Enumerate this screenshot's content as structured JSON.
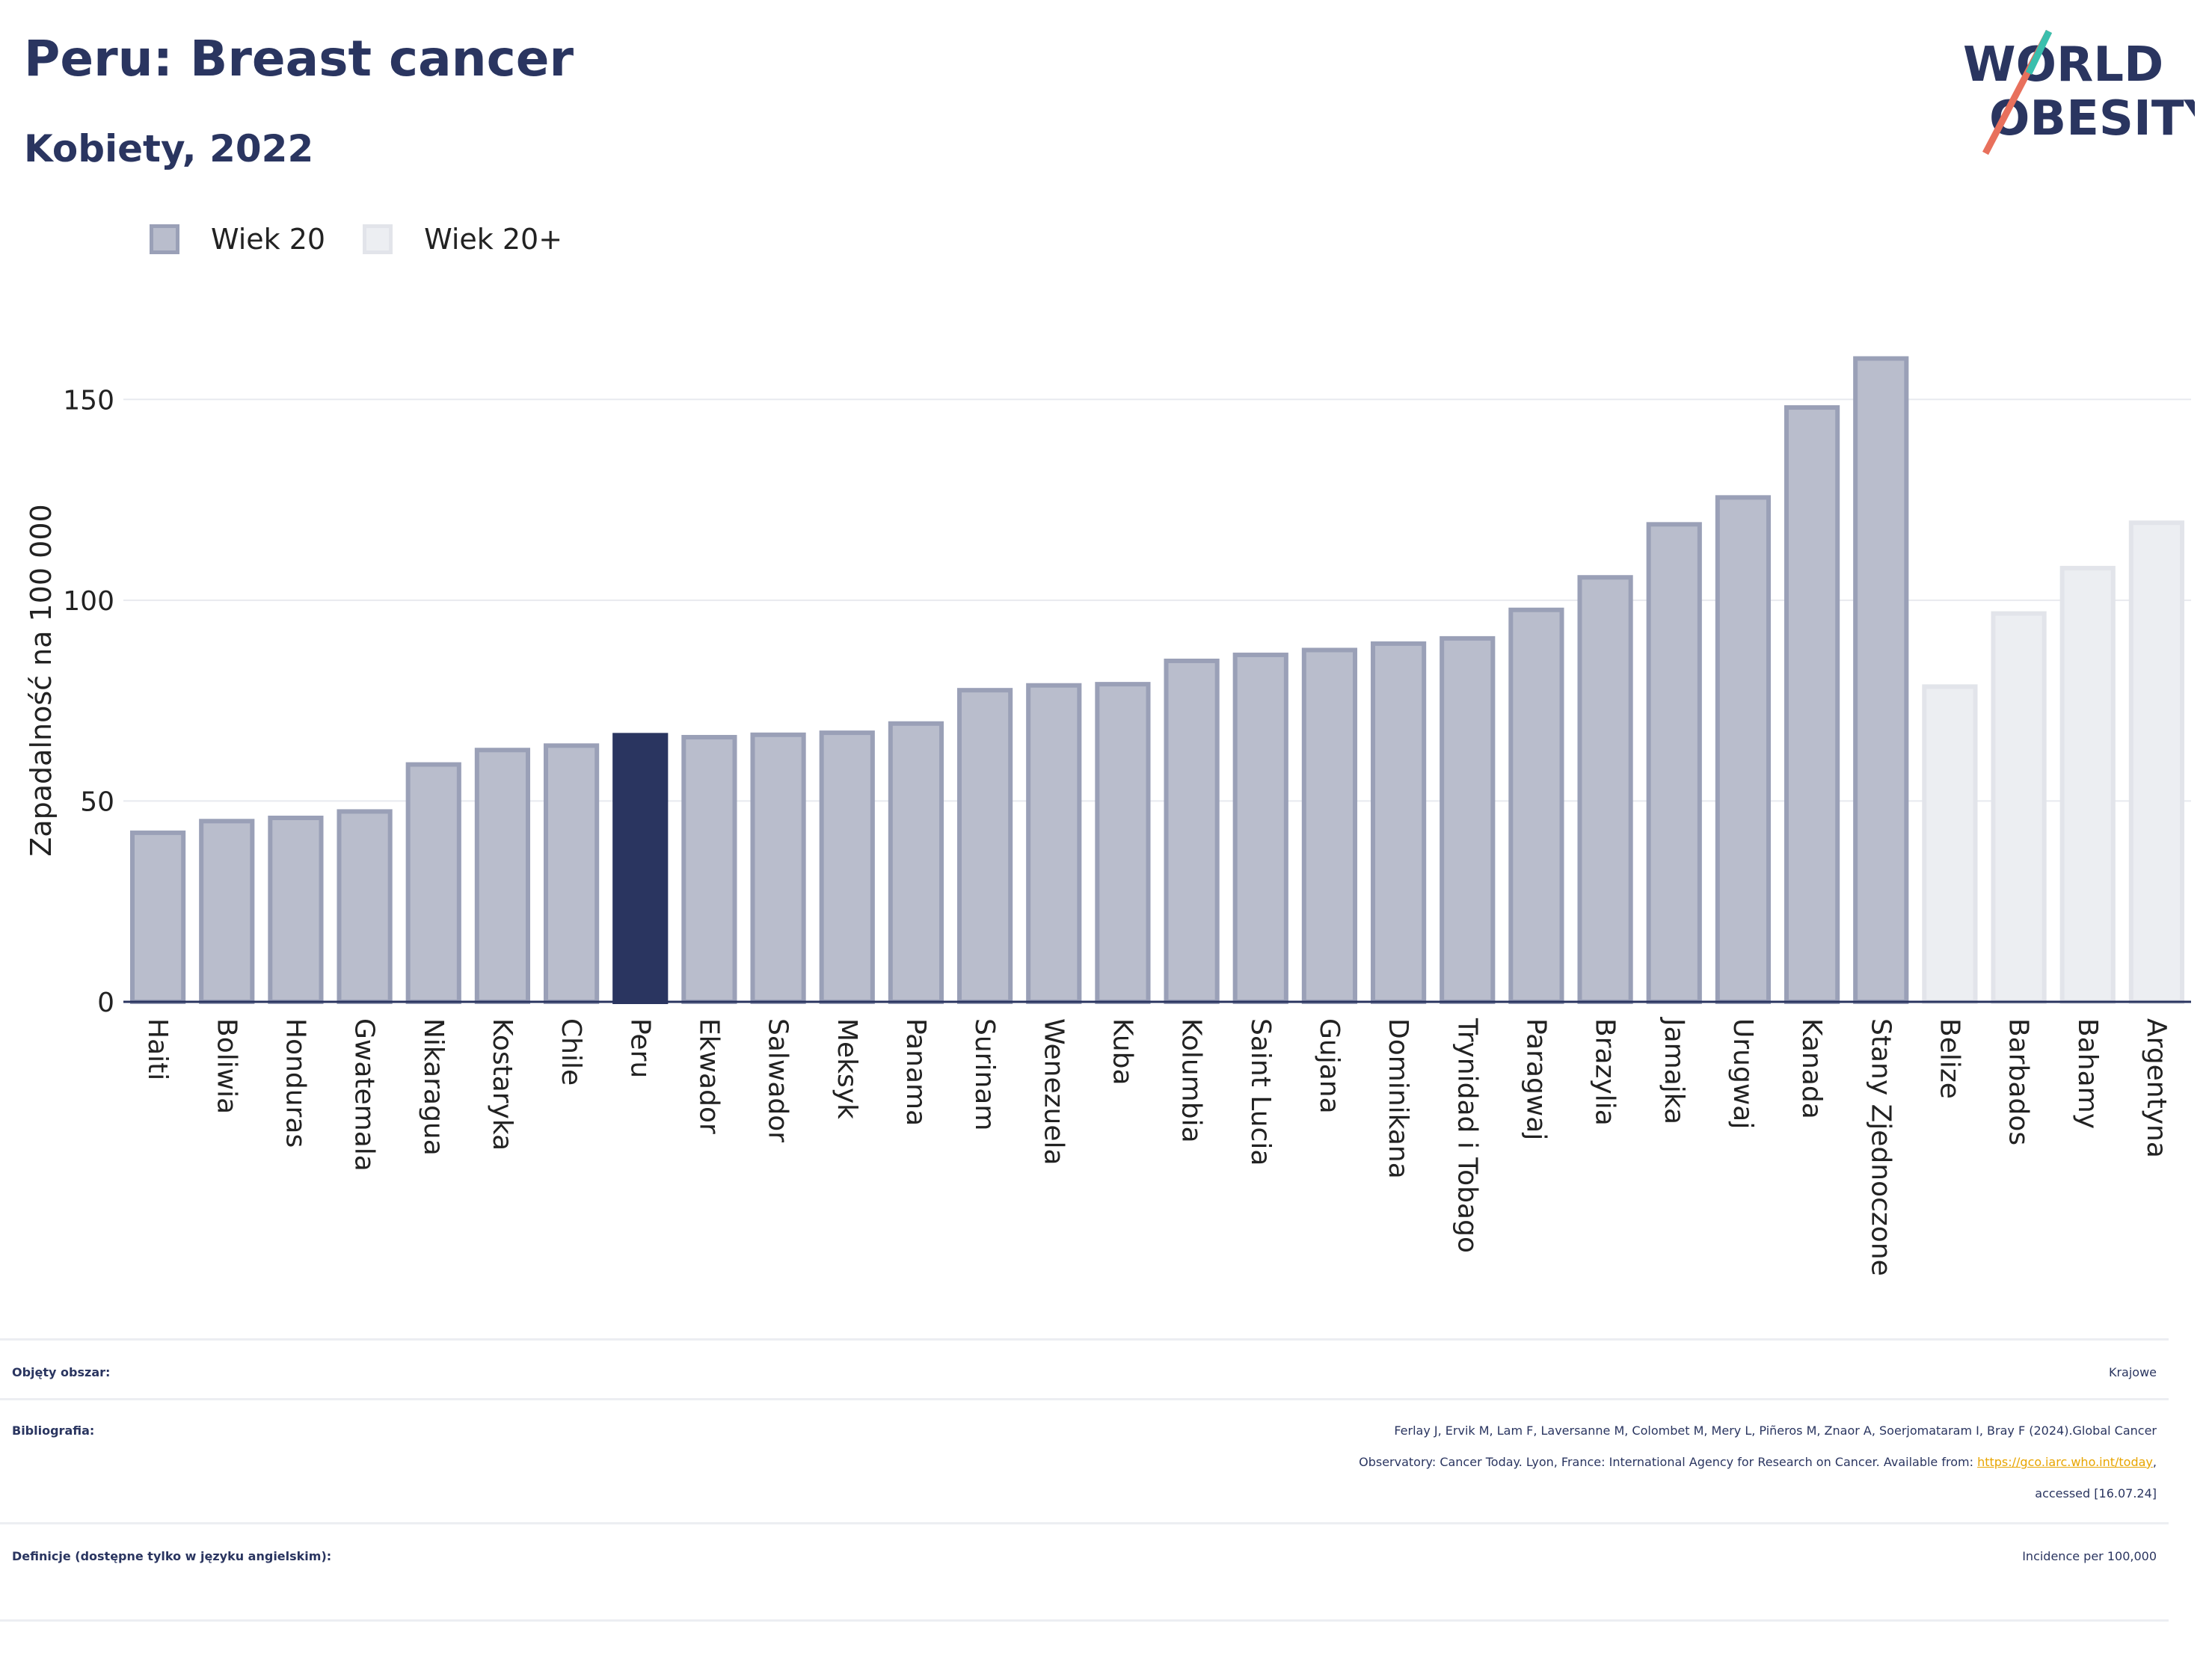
{
  "header": {
    "title": "Peru: Breast cancer",
    "subtitle": "Kobiety, 2022"
  },
  "logo": {
    "line1": "WORLD",
    "line2": "OBESITY"
  },
  "legend": [
    {
      "label": "Wiek 20",
      "color": "#b9bdcc"
    },
    {
      "label": "Wiek 20+",
      "color": "#eceef2"
    }
  ],
  "chart_data": {
    "type": "bar",
    "title": "Peru: Breast cancer",
    "subtitle": "Kobiety, 2022",
    "ylabel": "Zapadalność na 100 000",
    "xlabel": "",
    "ylim": [
      0,
      175
    ],
    "yticks": [
      0,
      50,
      100,
      150
    ],
    "grid": true,
    "legend_position": "top-left",
    "highlight": "Peru",
    "categories": [
      "Haiti",
      "Boliwia",
      "Honduras",
      "Gwatemala",
      "Nikaragua",
      "Kostaryka",
      "Chile",
      "Peru",
      "Ekwador",
      "Salwador",
      "Meksyk",
      "Panama",
      "Surinam",
      "Wenezuela",
      "Kuba",
      "Kolumbia",
      "Saint Lucia",
      "Gujana",
      "Dominikana",
      "Trynidad i Tobago",
      "Paragwaj",
      "Brazylia",
      "Jamajka",
      "Urugwaj",
      "Kanada",
      "Stany Zjednoczone",
      "Belize",
      "Barbados",
      "Bahamy",
      "Argentyna"
    ],
    "series": [
      {
        "name": "Wiek 20",
        "values": [
          42.1,
          45.0,
          45.8,
          47.4,
          59.1,
          62.7,
          63.8,
          66.4,
          65.9,
          66.5,
          67.0,
          69.3,
          77.6,
          78.8,
          79.1,
          84.9,
          86.4,
          87.6,
          89.2,
          90.5,
          97.6,
          105.7,
          118.9,
          125.6,
          148.0,
          160.2,
          null,
          null,
          null,
          null
        ]
      },
      {
        "name": "Wiek 20+",
        "values": [
          null,
          null,
          null,
          null,
          null,
          null,
          null,
          null,
          null,
          null,
          null,
          null,
          null,
          null,
          null,
          null,
          null,
          null,
          null,
          null,
          null,
          null,
          null,
          null,
          null,
          null,
          78.5,
          96.7,
          108.0,
          119.3
        ]
      }
    ],
    "colors": {
      "series1": "#b9bdcc",
      "series1_edge": "#9aa0b7",
      "series2": "#eceef2",
      "series2_edge": "#e2e4ea",
      "highlight": "#2a3560"
    }
  },
  "info": {
    "area_label": "Objęty obszar:",
    "area_value": "Krajowe",
    "biblio_label": "Bibliografia:",
    "biblio_line1": "Ferlay J, Ervik M, Lam F, Laversanne M, Colombet M, Mery L, Piñeros M, Znaor A, Soerjomataram I, Bray F (2024).Global Cancer",
    "biblio_line2_pre": "Observatory: Cancer Today. Lyon, France: International Agency for Research on Cancer. Available from: ",
    "biblio_link": "https://gco.iarc.who.int/today",
    "biblio_line2_post": ",",
    "biblio_line3": "accessed [16.07.24]",
    "def_label": "Definicje (dostępne tylko w języku angielskim):",
    "def_value": "Incidence per 100,000"
  }
}
